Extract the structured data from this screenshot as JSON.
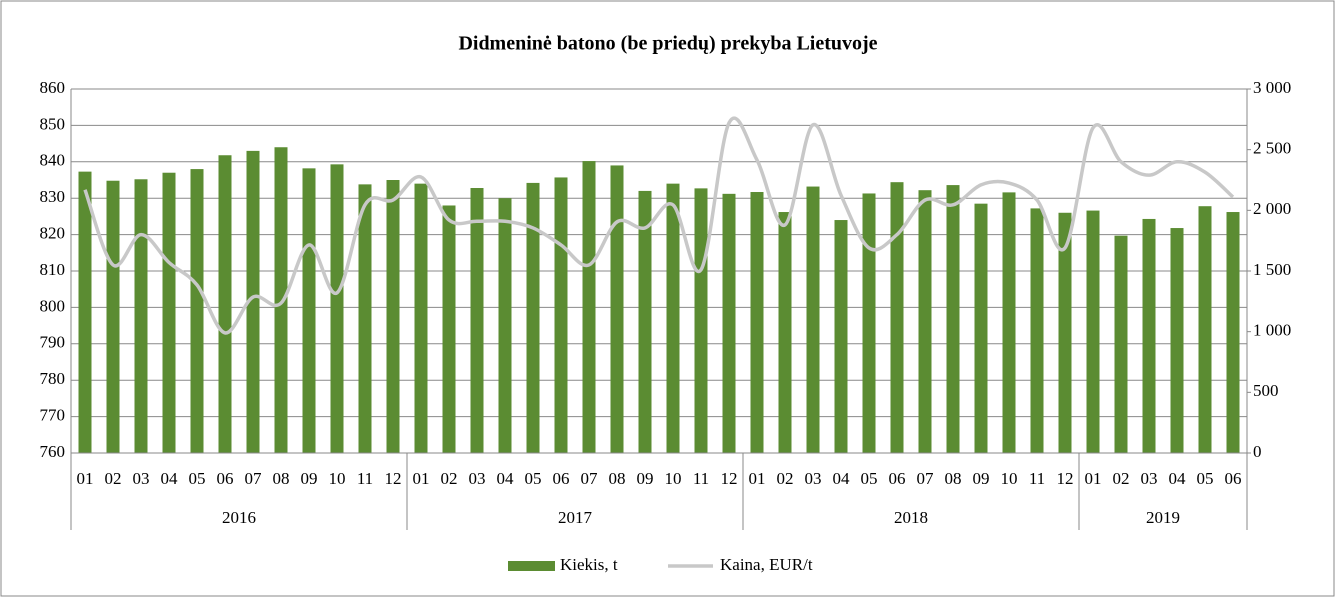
{
  "chart_data": {
    "type": "bar",
    "title": "Didmeninė batono  (be priedų) prekyba Lietuvoje",
    "categories": [
      "01",
      "02",
      "03",
      "04",
      "05",
      "06",
      "07",
      "08",
      "09",
      "10",
      "11",
      "12",
      "01",
      "02",
      "03",
      "04",
      "05",
      "06",
      "07",
      "08",
      "09",
      "10",
      "11",
      "12",
      "01",
      "02",
      "03",
      "04",
      "05",
      "06",
      "07",
      "08",
      "09",
      "10",
      "11",
      "12",
      "01",
      "02",
      "03",
      "04",
      "05",
      "06"
    ],
    "groups": [
      {
        "label": "2016",
        "count": 12
      },
      {
        "label": "2017",
        "count": 12
      },
      {
        "label": "2018",
        "count": 12
      },
      {
        "label": "2019",
        "count": 6
      }
    ],
    "series": [
      {
        "name": "Kiekis, t",
        "color": "#5b8c32",
        "type": "bar",
        "values": [
          837.3,
          834.8,
          835.2,
          837,
          838,
          841.8,
          843,
          844,
          838.2,
          839.3,
          833.8,
          835,
          834,
          828,
          832.8,
          830,
          834.2,
          835.7,
          840.2,
          839,
          832,
          834,
          832.7,
          831.2,
          831.7,
          826.2,
          833.2,
          824,
          831.3,
          834.4,
          832.2,
          833.6,
          828.5,
          831.6,
          827.2,
          826,
          826.6,
          819.7,
          824.3,
          821.8,
          827.8,
          826.2
        ]
      },
      {
        "name": "Kaina, EUR/t",
        "color": "#c8c8c8",
        "type": "line",
        "axis": "y2",
        "values": [
          2170,
          1550,
          1800,
          1570,
          1385,
          990,
          1285,
          1235,
          1715,
          1320,
          2045,
          2085,
          2275,
          1920,
          1910,
          1910,
          1855,
          1715,
          1550,
          1905,
          1855,
          2045,
          1510,
          2720,
          2415,
          1880,
          2705,
          2125,
          1690,
          1800,
          2085,
          2045,
          2210,
          2225,
          2085,
          1690,
          2680,
          2400,
          2290,
          2400,
          2315,
          2110
        ]
      }
    ],
    "ylim": [
      760,
      860
    ],
    "yticks": [
      760,
      770,
      780,
      790,
      800,
      810,
      820,
      830,
      840,
      850,
      860
    ],
    "y2lim": [
      0,
      3000
    ],
    "y2ticks": [
      0,
      500,
      {
        "value": 1000,
        "label": "1 000"
      },
      {
        "value": 1500,
        "label": "1 500"
      },
      {
        "value": 2000,
        "label": "2 000"
      },
      {
        "value": 2500,
        "label": "2 500"
      },
      {
        "value": 3000,
        "label": "3 000"
      }
    ],
    "grid": true,
    "legend": "bottom"
  }
}
